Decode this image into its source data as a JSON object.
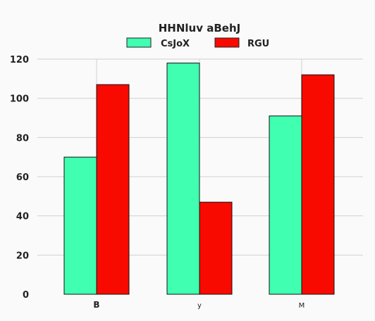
{
  "chart_data": {
    "type": "bar",
    "title": "HHNluv aBehJ",
    "xlabel": "",
    "ylabel": "",
    "categories": [
      "B",
      "y",
      "M"
    ],
    "series": [
      {
        "name": "CsJoX",
        "values": [
          70,
          118,
          91
        ],
        "color": "#40ffb0"
      },
      {
        "name": "RGU",
        "values": [
          107,
          47,
          112
        ],
        "color": "#f80a00"
      }
    ],
    "ylim": [
      0,
      120
    ],
    "yticks": [
      0,
      20,
      40,
      60,
      80,
      100,
      120
    ],
    "grid": true,
    "legend_position": "top-center"
  }
}
